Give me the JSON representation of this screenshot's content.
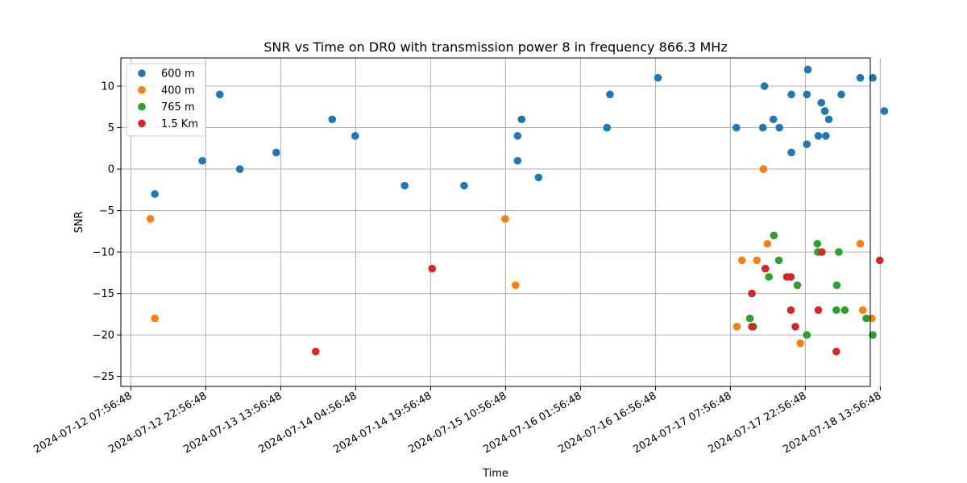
{
  "chart_data": {
    "type": "scatter",
    "title": "SNR vs Time on DR0 with transmission power 8 in frequency 866.3 MHz",
    "xlabel": "Time",
    "ylabel": "SNR",
    "xlim_hours": [
      -2.0,
      148.0
    ],
    "ylim": [
      -26.2,
      13.4
    ],
    "x_unit": "hours since 2024-07-12 07:56:48",
    "grid": true,
    "legend_position": "upper-left",
    "x_ticks": [
      {
        "value": 0,
        "label": "2024-07-12 07:56:48"
      },
      {
        "value": 15,
        "label": "2024-07-12 22:56:48"
      },
      {
        "value": 30,
        "label": "2024-07-13 13:56:48"
      },
      {
        "value": 45,
        "label": "2024-07-14 04:56:48"
      },
      {
        "value": 60,
        "label": "2024-07-14 19:56:48"
      },
      {
        "value": 75,
        "label": "2024-07-15 10:56:48"
      },
      {
        "value": 90,
        "label": "2024-07-16 01:56:48"
      },
      {
        "value": 105,
        "label": "2024-07-16 16:56:48"
      },
      {
        "value": 120,
        "label": "2024-07-17 07:56:48"
      },
      {
        "value": 135,
        "label": "2024-07-17 22:56:48"
      },
      {
        "value": 150,
        "label": "2024-07-18 13:56:48"
      }
    ],
    "y_ticks": [
      {
        "value": 10,
        "label": "10"
      },
      {
        "value": 5,
        "label": "5"
      },
      {
        "value": 0,
        "label": "0"
      },
      {
        "value": -5,
        "label": "−5"
      },
      {
        "value": -10,
        "label": "−10"
      },
      {
        "value": -15,
        "label": "−15"
      },
      {
        "value": -20,
        "label": "−20"
      },
      {
        "value": -25,
        "label": "−25"
      }
    ],
    "series": [
      {
        "name": "600 m",
        "color": "#1f77b4",
        "points": [
          [
            4.8,
            -3
          ],
          [
            14.3,
            1
          ],
          [
            17.8,
            9
          ],
          [
            21.8,
            0
          ],
          [
            29.1,
            2
          ],
          [
            40.3,
            6
          ],
          [
            44.9,
            4
          ],
          [
            54.8,
            -2
          ],
          [
            66.7,
            -2
          ],
          [
            77.4,
            4
          ],
          [
            77.4,
            1
          ],
          [
            78.2,
            6
          ],
          [
            81.6,
            -1
          ],
          [
            95.3,
            5
          ],
          [
            95.9,
            9
          ],
          [
            105.5,
            11
          ],
          [
            121.2,
            5
          ],
          [
            126.5,
            5
          ],
          [
            126.8,
            10
          ],
          [
            128.6,
            6
          ],
          [
            129.8,
            5
          ],
          [
            132.2,
            2
          ],
          [
            132.2,
            9
          ],
          [
            135.3,
            3
          ],
          [
            135.5,
            12
          ],
          [
            135.3,
            9
          ],
          [
            137.6,
            4
          ],
          [
            138.2,
            8
          ],
          [
            138.9,
            7
          ],
          [
            139.1,
            4
          ],
          [
            139.7,
            6
          ],
          [
            142.2,
            9
          ],
          [
            146.0,
            11
          ],
          [
            148.5,
            11
          ],
          [
            150.8,
            7
          ]
        ]
      },
      {
        "name": "400 m",
        "color": "#ff7f0e",
        "points": [
          [
            3.9,
            -6
          ],
          [
            4.8,
            -18
          ],
          [
            74.9,
            -6
          ],
          [
            77.0,
            -14
          ],
          [
            121.3,
            -19
          ],
          [
            122.3,
            -11
          ],
          [
            125.3,
            -11
          ],
          [
            126.6,
            0
          ],
          [
            127.4,
            -9
          ],
          [
            134.0,
            -21
          ],
          [
            146.0,
            -9
          ],
          [
            146.5,
            -17
          ],
          [
            148.3,
            -18
          ]
        ]
      },
      {
        "name": "765 m",
        "color": "#2ca02c",
        "points": [
          [
            123.9,
            -18
          ],
          [
            124.6,
            -19
          ],
          [
            127.7,
            -13
          ],
          [
            128.7,
            -8
          ],
          [
            129.7,
            -11
          ],
          [
            133.4,
            -14
          ],
          [
            135.3,
            -20
          ],
          [
            137.4,
            -9
          ],
          [
            137.5,
            -10
          ],
          [
            141.2,
            -17
          ],
          [
            141.7,
            -10
          ],
          [
            142.9,
            -17
          ],
          [
            141.3,
            -14
          ],
          [
            147.2,
            -18
          ],
          [
            148.5,
            -20
          ]
        ]
      },
      {
        "name": "1.5 Km",
        "color": "#d62728",
        "points": [
          [
            37.0,
            -22
          ],
          [
            60.3,
            -12
          ],
          [
            124.3,
            -15
          ],
          [
            124.3,
            -19
          ],
          [
            127.0,
            -12
          ],
          [
            131.3,
            -13
          ],
          [
            132.1,
            -13
          ],
          [
            132.1,
            -17
          ],
          [
            133.0,
            -19
          ],
          [
            137.6,
            -17
          ],
          [
            138.3,
            -10
          ],
          [
            141.2,
            -22
          ],
          [
            149.9,
            -11
          ]
        ]
      }
    ]
  }
}
